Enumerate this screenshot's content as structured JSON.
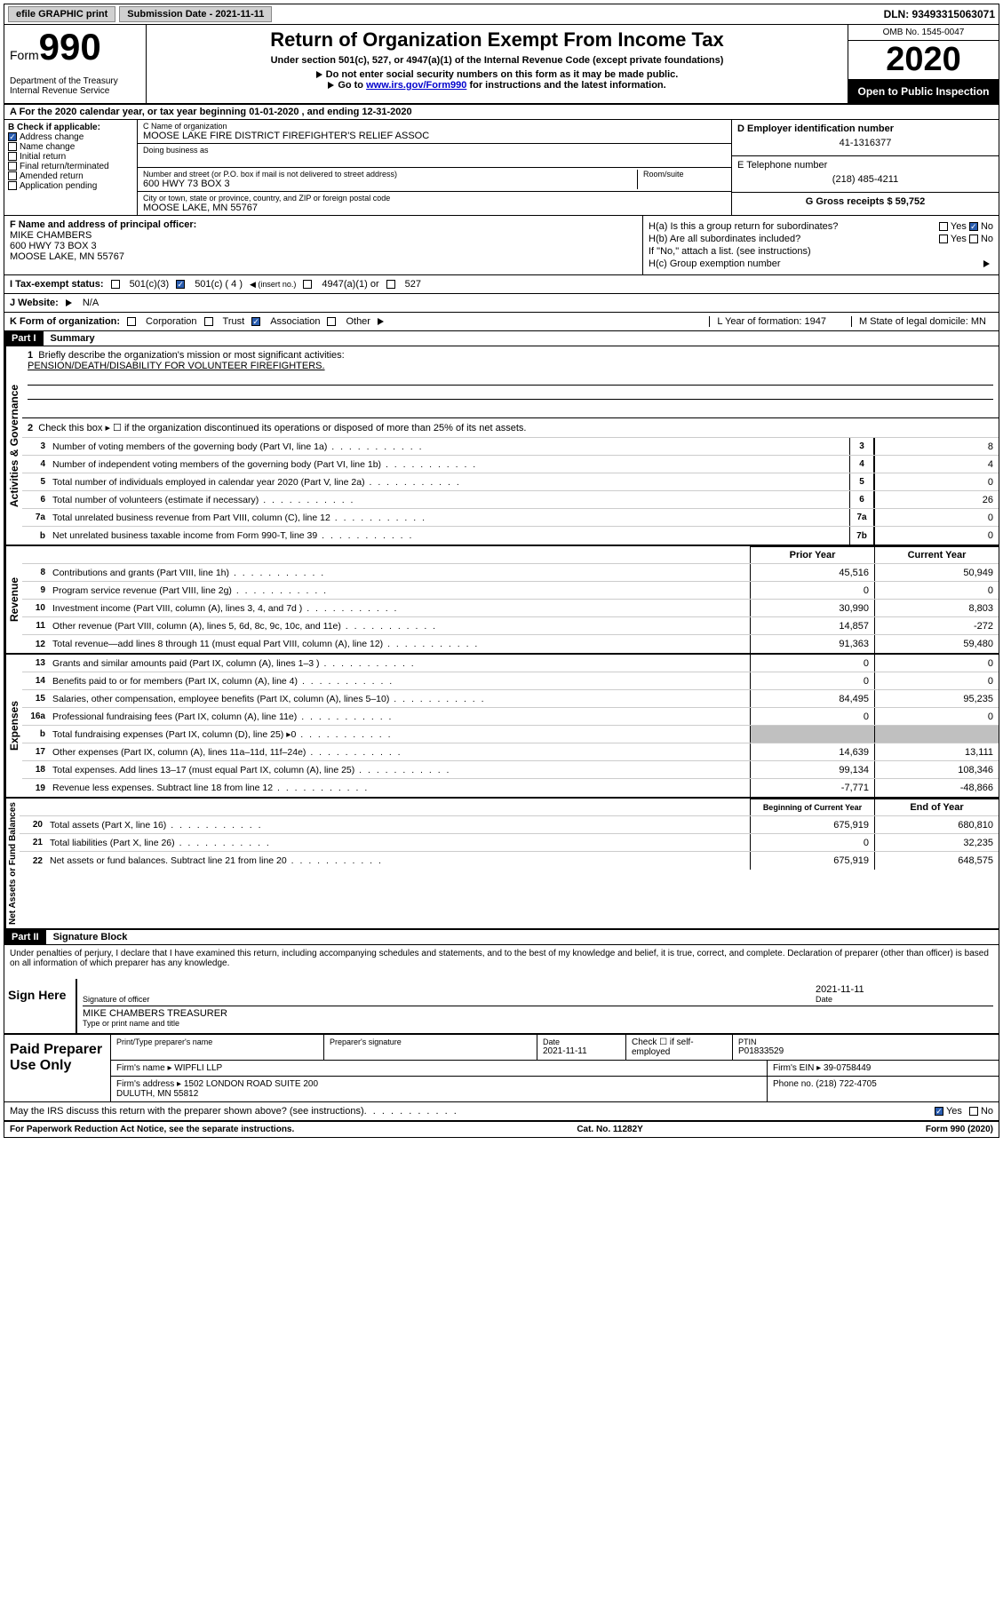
{
  "topbar": {
    "efile_label": "efile GRAPHIC print",
    "submission_label": "Submission Date - 2021-11-11",
    "dln": "DLN: 93493315063071"
  },
  "header": {
    "form_label": "Form",
    "form_number": "990",
    "dept": "Department of the Treasury\nInternal Revenue Service",
    "main_title": "Return of Organization Exempt From Income Tax",
    "sub_title": "Under section 501(c), 527, or 4947(a)(1) of the Internal Revenue Code (except private foundations)",
    "instr1": "Do not enter social security numbers on this form as it may be made public.",
    "instr2_prefix": "Go to ",
    "instr2_link": "www.irs.gov/Form990",
    "instr2_suffix": " for instructions and the latest information.",
    "omb": "OMB No. 1545-0047",
    "year": "2020",
    "open_public": "Open to Public Inspection"
  },
  "section_a": "A  For the 2020 calendar year, or tax year beginning 01-01-2020    , and ending 12-31-2020",
  "col_b": {
    "label": "B Check if applicable:",
    "address_change": "Address change",
    "name_change": "Name change",
    "initial_return": "Initial return",
    "final_return": "Final return/terminated",
    "amended_return": "Amended return",
    "application_pending": "Application pending"
  },
  "col_c": {
    "name_label": "C Name of organization",
    "name_value": "MOOSE LAKE FIRE DISTRICT FIREFIGHTER'S RELIEF ASSOC",
    "dba_label": "Doing business as",
    "addr_label": "Number and street (or P.O. box if mail is not delivered to street address)",
    "room_label": "Room/suite",
    "addr_value": "600 HWY 73 BOX 3",
    "city_label": "City or town, state or province, country, and ZIP or foreign postal code",
    "city_value": "MOOSE LAKE, MN  55767"
  },
  "col_d": {
    "ein_label": "D Employer identification number",
    "ein_value": "41-1316377",
    "phone_label": "E Telephone number",
    "phone_value": "(218) 485-4211",
    "gross_label": "G Gross receipts $ 59,752"
  },
  "f_block": {
    "label": "F Name and address of principal officer:",
    "name": "MIKE CHAMBERS",
    "addr1": "600 HWY 73 BOX 3",
    "addr2": "MOOSE LAKE, MN  55767"
  },
  "h_block": {
    "ha_label": "H(a)  Is this a group return for subordinates?",
    "hb_label": "H(b)  Are all subordinates included?",
    "hb_note": "If \"No,\" attach a list. (see instructions)",
    "hc_label": "H(c)  Group exemption number",
    "yes": "Yes",
    "no": "No"
  },
  "status_row": {
    "label": "I    Tax-exempt status:",
    "c3": "501(c)(3)",
    "c": "501(c) ( 4 )",
    "insert": "(insert no.)",
    "a1": "4947(a)(1) or",
    "s527": "527"
  },
  "website_row": {
    "label": "J    Website:",
    "value": "N/A"
  },
  "k_row": {
    "label": "K Form of organization:",
    "corp": "Corporation",
    "trust": "Trust",
    "assoc": "Association",
    "other": "Other",
    "l_label": "L Year of formation: 1947",
    "m_label": "M State of legal domicile: MN"
  },
  "part1": {
    "header": "Part I",
    "title": "Summary",
    "line1_label": "Briefly describe the organization's mission or most significant activities:",
    "line1_value": "PENSION/DEATH/DISABILITY FOR VOLUNTEER FIREFIGHTERS.",
    "line2": "Check this box ▸ ☐  if the organization discontinued its operations or disposed of more than 25% of its net assets.",
    "vert_gov": "Activities & Governance",
    "vert_rev": "Revenue",
    "vert_exp": "Expenses",
    "vert_net": "Net Assets or Fund Balances",
    "lines_gov": [
      {
        "num": "3",
        "text": "Number of voting members of the governing body (Part VI, line 1a)",
        "box": "3",
        "val": "8"
      },
      {
        "num": "4",
        "text": "Number of independent voting members of the governing body (Part VI, line 1b)",
        "box": "4",
        "val": "4"
      },
      {
        "num": "5",
        "text": "Total number of individuals employed in calendar year 2020 (Part V, line 2a)",
        "box": "5",
        "val": "0"
      },
      {
        "num": "6",
        "text": "Total number of volunteers (estimate if necessary)",
        "box": "6",
        "val": "26"
      },
      {
        "num": "7a",
        "text": "Total unrelated business revenue from Part VIII, column (C), line 12",
        "box": "7a",
        "val": "0"
      },
      {
        "num": "b",
        "text": "Net unrelated business taxable income from Form 990-T, line 39",
        "box": "7b",
        "val": "0"
      }
    ],
    "header_prior": "Prior Year",
    "header_current": "Current Year",
    "lines_rev": [
      {
        "num": "8",
        "text": "Contributions and grants (Part VIII, line 1h)",
        "prior": "45,516",
        "current": "50,949"
      },
      {
        "num": "9",
        "text": "Program service revenue (Part VIII, line 2g)",
        "prior": "0",
        "current": "0"
      },
      {
        "num": "10",
        "text": "Investment income (Part VIII, column (A), lines 3, 4, and 7d )",
        "prior": "30,990",
        "current": "8,803"
      },
      {
        "num": "11",
        "text": "Other revenue (Part VIII, column (A), lines 5, 6d, 8c, 9c, 10c, and 11e)",
        "prior": "14,857",
        "current": "-272"
      },
      {
        "num": "12",
        "text": "Total revenue—add lines 8 through 11 (must equal Part VIII, column (A), line 12)",
        "prior": "91,363",
        "current": "59,480"
      }
    ],
    "lines_exp": [
      {
        "num": "13",
        "text": "Grants and similar amounts paid (Part IX, column (A), lines 1–3 )",
        "prior": "0",
        "current": "0"
      },
      {
        "num": "14",
        "text": "Benefits paid to or for members (Part IX, column (A), line 4)",
        "prior": "0",
        "current": "0"
      },
      {
        "num": "15",
        "text": "Salaries, other compensation, employee benefits (Part IX, column (A), lines 5–10)",
        "prior": "84,495",
        "current": "95,235"
      },
      {
        "num": "16a",
        "text": "Professional fundraising fees (Part IX, column (A), line 11e)",
        "prior": "0",
        "current": "0"
      },
      {
        "num": "b",
        "text": "Total fundraising expenses (Part IX, column (D), line 25) ▸0",
        "prior": "shaded",
        "current": "shaded"
      },
      {
        "num": "17",
        "text": "Other expenses (Part IX, column (A), lines 11a–11d, 11f–24e)",
        "prior": "14,639",
        "current": "13,111"
      },
      {
        "num": "18",
        "text": "Total expenses. Add lines 13–17 (must equal Part IX, column (A), line 25)",
        "prior": "99,134",
        "current": "108,346"
      },
      {
        "num": "19",
        "text": "Revenue less expenses. Subtract line 18 from line 12",
        "prior": "-7,771",
        "current": "-48,866"
      }
    ],
    "header_begin": "Beginning of Current Year",
    "header_end": "End of Year",
    "lines_net": [
      {
        "num": "20",
        "text": "Total assets (Part X, line 16)",
        "prior": "675,919",
        "current": "680,810"
      },
      {
        "num": "21",
        "text": "Total liabilities (Part X, line 26)",
        "prior": "0",
        "current": "32,235"
      },
      {
        "num": "22",
        "text": "Net assets or fund balances. Subtract line 21 from line 20",
        "prior": "675,919",
        "current": "648,575"
      }
    ]
  },
  "part2": {
    "header": "Part II",
    "title": "Signature Block",
    "penalty": "Under penalties of perjury, I declare that I have examined this return, including accompanying schedules and statements, and to the best of my knowledge and belief, it is true, correct, and complete. Declaration of preparer (other than officer) is based on all information of which preparer has any knowledge.",
    "sign_here": "Sign Here",
    "sig_officer": "Signature of officer",
    "sig_date": "2021-11-11",
    "date_label": "Date",
    "officer_name": "MIKE CHAMBERS  TREASURER",
    "type_name": "Type or print name and title",
    "paid_label": "Paid Preparer Use Only",
    "prep_name_label": "Print/Type preparer's name",
    "prep_sig_label": "Preparer's signature",
    "prep_date_label": "Date",
    "prep_date": "2021-11-11",
    "check_se": "Check ☐ if self-employed",
    "ptin_label": "PTIN",
    "ptin": "P01833529",
    "firm_name_label": "Firm's name   ▸",
    "firm_name": "WIPFLI LLP",
    "firm_ein_label": "Firm's EIN ▸",
    "firm_ein": "39-0758449",
    "firm_addr_label": "Firm's address ▸",
    "firm_addr": "1502 LONDON ROAD SUITE 200\nDULUTH, MN  55812",
    "phone_label": "Phone no.",
    "phone": "(218) 722-4705",
    "discuss": "May the IRS discuss this return with the preparer shown above? (see instructions)",
    "yes": "Yes",
    "no": "No"
  },
  "footer": {
    "pra": "For Paperwork Reduction Act Notice, see the separate instructions.",
    "cat": "Cat. No. 11282Y",
    "form": "Form 990 (2020)"
  }
}
